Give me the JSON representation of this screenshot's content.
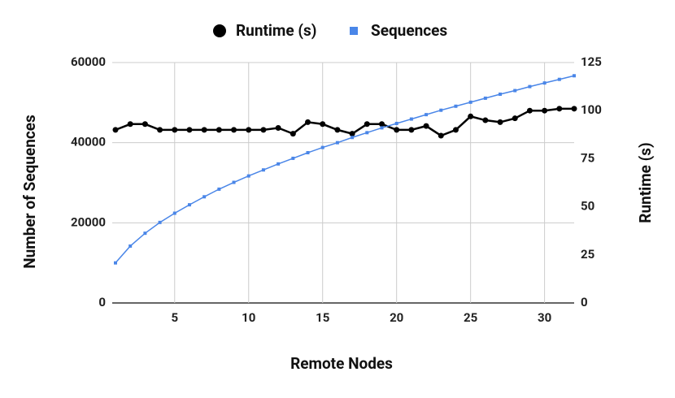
{
  "chart_data": {
    "type": "line",
    "x_label": "Remote Nodes",
    "y_label": "Number of Sequences",
    "y2_label": "Runtime (s)",
    "x": [
      1,
      2,
      3,
      4,
      5,
      6,
      7,
      8,
      9,
      10,
      11,
      12,
      13,
      14,
      15,
      16,
      17,
      18,
      19,
      20,
      21,
      22,
      23,
      24,
      25,
      26,
      27,
      28,
      29,
      30,
      31,
      32
    ],
    "series": [
      {
        "name": "Runtime (s)",
        "color": "#000000",
        "marker": "circle",
        "axis": "y2",
        "values": [
          90,
          93,
          93,
          90,
          90,
          90,
          90,
          90,
          90,
          90,
          90,
          91,
          88,
          94,
          93,
          90,
          88,
          93,
          93,
          90,
          90,
          92,
          87,
          90,
          97,
          95,
          94,
          96,
          100,
          100,
          101,
          101
        ]
      },
      {
        "name": "Sequences",
        "color": "#4a86e8",
        "marker": "square",
        "values": [
          10000,
          14200,
          17400,
          20100,
          22400,
          24500,
          26500,
          28400,
          30100,
          31700,
          33200,
          34700,
          36100,
          37500,
          38800,
          40000,
          41300,
          42500,
          43700,
          44800,
          45900,
          47000,
          48100,
          49100,
          50100,
          51100,
          52100,
          53000,
          54000,
          54900,
          55800,
          56700
        ]
      }
    ],
    "xlim": [
      1,
      32
    ],
    "xticks": [
      5,
      10,
      15,
      20,
      25,
      30
    ],
    "ylim": [
      0,
      60000
    ],
    "yticks": [
      0,
      20000,
      40000,
      60000
    ],
    "y2lim": [
      0,
      125
    ],
    "y2ticks": [
      0,
      25,
      50,
      75,
      100,
      125
    ],
    "grid": true,
    "legend": "top"
  }
}
